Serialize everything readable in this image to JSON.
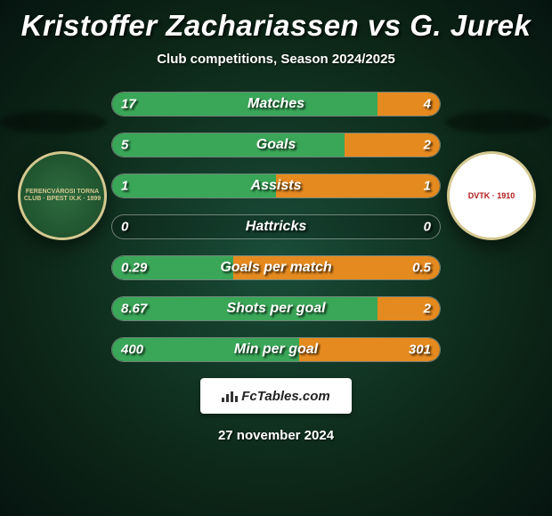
{
  "header": {
    "title": "Kristoffer Zachariassen vs G. Jurek",
    "subtitle": "Club competitions, Season 2024/2025"
  },
  "crest_left": {
    "text": "FERENCVÁROSI TORNA CLUB · BPEST IX.K · 1899",
    "bg_color": "#2e6b3e",
    "ring_color": "#d4c890"
  },
  "crest_right": {
    "text": "DVTK · 1910",
    "bg_color": "#ffffff",
    "accent_color": "#b01818"
  },
  "colors": {
    "bar_left": "#3aa658",
    "bar_right": "#e58a1f"
  },
  "stats": [
    {
      "label": "Matches",
      "left_val": "17",
      "right_val": "4",
      "left_pct": 81,
      "right_pct": 19
    },
    {
      "label": "Goals",
      "left_val": "5",
      "right_val": "2",
      "left_pct": 71,
      "right_pct": 29
    },
    {
      "label": "Assists",
      "left_val": "1",
      "right_val": "1",
      "left_pct": 50,
      "right_pct": 50
    },
    {
      "label": "Hattricks",
      "left_val": "0",
      "right_val": "0",
      "left_pct": 0,
      "right_pct": 0
    },
    {
      "label": "Goals per match",
      "left_val": "0.29",
      "right_val": "0.5",
      "left_pct": 37,
      "right_pct": 63
    },
    {
      "label": "Shots per goal",
      "left_val": "8.67",
      "right_val": "2",
      "left_pct": 81,
      "right_pct": 19
    },
    {
      "label": "Min per goal",
      "left_val": "400",
      "right_val": "301",
      "left_pct": 57,
      "right_pct": 43
    }
  ],
  "footer": {
    "logo": "FcTables.com",
    "date": "27 november 2024"
  }
}
